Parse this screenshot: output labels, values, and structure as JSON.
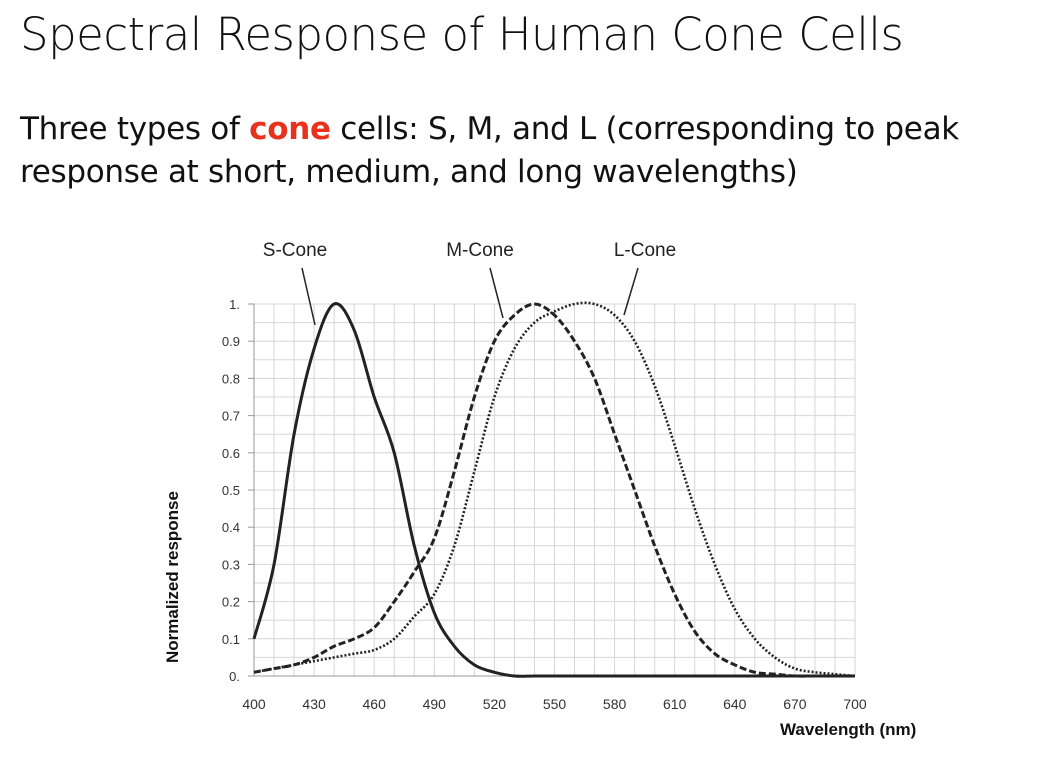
{
  "slide": {
    "title": "Spectral Response of Human Cone Cells",
    "subtitle_pre": "Three types of ",
    "subtitle_highlight": "cone",
    "subtitle_post_line1": " cells: S, M, and L (corresponding to peak",
    "subtitle_line2": "response at short, medium, and long wavelengths)",
    "highlight_color": "#e8321e"
  },
  "chart_data": {
    "type": "line",
    "title": "",
    "xlabel": "Wavelength (nm)",
    "ylabel": "Normalized response",
    "xlim": [
      400,
      700
    ],
    "ylim": [
      0,
      1
    ],
    "grid": true,
    "x_ticks": [
      "400",
      "430",
      "460",
      "490",
      "520",
      "550",
      "580",
      "610",
      "640",
      "670",
      "700"
    ],
    "y_ticks": [
      "0.",
      "0.1",
      "0.2",
      "0.3",
      "0.4",
      "0.5",
      "0.6",
      "0.7",
      "0.8",
      "0.9",
      "1."
    ],
    "x": [
      400,
      410,
      420,
      430,
      440,
      450,
      460,
      470,
      480,
      490,
      500,
      510,
      520,
      530,
      540,
      550,
      560,
      570,
      580,
      590,
      600,
      610,
      620,
      630,
      640,
      650,
      660,
      670,
      680,
      690,
      700
    ],
    "series": [
      {
        "name": "S-Cone",
        "style": "solid",
        "values": [
          0.1,
          0.3,
          0.65,
          0.88,
          1.0,
          0.93,
          0.75,
          0.6,
          0.35,
          0.17,
          0.08,
          0.03,
          0.01,
          0.0,
          0,
          0,
          0,
          0,
          0,
          0,
          0,
          0,
          0,
          0,
          0,
          0,
          0,
          0,
          0,
          0,
          0
        ]
      },
      {
        "name": "M-Cone",
        "style": "dashed",
        "values": [
          0.01,
          0.02,
          0.03,
          0.05,
          0.08,
          0.1,
          0.13,
          0.2,
          0.28,
          0.37,
          0.55,
          0.75,
          0.9,
          0.97,
          1.0,
          0.97,
          0.9,
          0.8,
          0.65,
          0.5,
          0.35,
          0.22,
          0.12,
          0.06,
          0.03,
          0.01,
          0.005,
          0,
          0,
          0,
          0
        ]
      },
      {
        "name": "L-Cone",
        "style": "dotted",
        "values": [
          0.01,
          0.02,
          0.03,
          0.04,
          0.05,
          0.06,
          0.07,
          0.1,
          0.16,
          0.22,
          0.35,
          0.55,
          0.75,
          0.88,
          0.95,
          0.98,
          1.0,
          1.0,
          0.97,
          0.9,
          0.78,
          0.62,
          0.45,
          0.3,
          0.18,
          0.1,
          0.05,
          0.02,
          0.01,
          0.005,
          0
        ]
      }
    ]
  }
}
